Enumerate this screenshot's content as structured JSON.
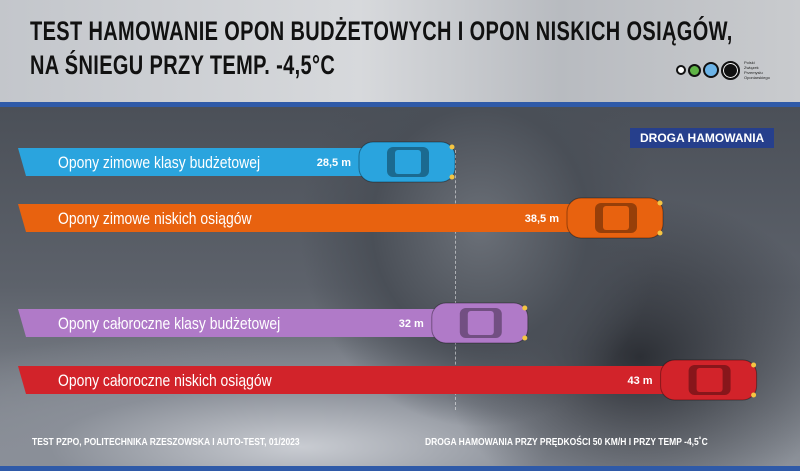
{
  "title_lines": [
    "TEST HAMOWANIE OPON BUDŻETOWYCH I OPON NISKICH OSIĄGÓW,",
    "NA ŚNIEGU PRZY TEMP. -4,5°C"
  ],
  "logo_text": "Polski Związek Przemysłu Oponiarskiego",
  "footer": {
    "left": "TEST PZPO, POLITECHNIKA RZESZOWSKA I AUTO-TEST, 01/2023",
    "right": "DROGA HAMOWANIA PRZY PRĘDKOŚCI 50 KM/H I PRZY TEMP -4,5˚C"
  },
  "chart_data": {
    "type": "bar",
    "orientation": "horizontal",
    "legend": "DROGA HAMOWANIA",
    "legend_placement": "top-right",
    "unit": "m",
    "categories": [
      "Opony zimowe klasy budżetowej",
      "Opony zimowe niskich osiągów",
      "Opony całoroczne klasy budżetowej",
      "Opony całoroczne niskich osiągów"
    ],
    "values": [
      28.5,
      38.5,
      32,
      43
    ],
    "value_labels": [
      "28,5 m",
      "38,5 m",
      "32 m",
      "43 m"
    ],
    "colors": [
      "#2aa4de",
      "#e8620f",
      "#b07ac8",
      "#d2232a"
    ]
  }
}
